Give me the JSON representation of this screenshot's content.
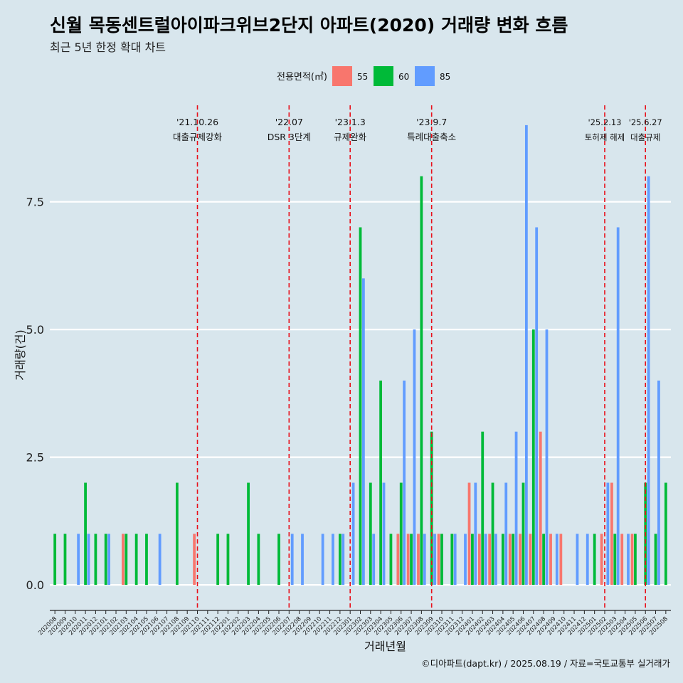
{
  "title": "신월 목동센트럴아이파크위브2단지 아파트(2020) 거래량 변화 흐름",
  "subtitle": "최근 5년 한정 확대 차트",
  "caption": "©디아파트(dapt.kr) / 2025.08.19 / 자료=국토교통부 실거래가",
  "chart_data": {
    "type": "bar",
    "xlabel": "거래년월",
    "ylabel": "거래량(건)",
    "ylim": [
      -0.5,
      9.5
    ],
    "yticks": [
      0.0,
      2.5,
      5.0,
      7.5
    ],
    "ytick_labels": [
      "0.0",
      "2.5",
      "5.0",
      "7.5"
    ],
    "grid": true,
    "legend": {
      "title": "전용면적(㎡)",
      "position": "top"
    },
    "categories": [
      "202008",
      "202009",
      "202010",
      "202011",
      "202012",
      "202101",
      "202102",
      "202103",
      "202104",
      "202105",
      "202106",
      "202107",
      "202108",
      "202109",
      "202110",
      "202111",
      "202112",
      "202201",
      "202202",
      "202203",
      "202204",
      "202205",
      "202206",
      "202207",
      "202208",
      "202209",
      "202210",
      "202211",
      "202212",
      "202301",
      "202302",
      "202303",
      "202304",
      "202305",
      "202306",
      "202307",
      "202308",
      "202309",
      "202310",
      "202311",
      "202312",
      "202401",
      "202402",
      "202403",
      "202404",
      "202405",
      "202406",
      "202407",
      "202408",
      "202409",
      "202410",
      "202411",
      "202412",
      "202501",
      "202502",
      "202503",
      "202504",
      "202505",
      "202506",
      "202507",
      "202508"
    ],
    "series": [
      {
        "name": "55",
        "color": "#f8766d",
        "values": [
          0,
          0,
          0,
          0,
          0,
          0,
          0,
          1,
          0,
          0,
          0,
          0,
          0,
          0,
          1,
          0,
          0,
          0,
          0,
          0,
          0,
          0,
          0,
          0,
          0,
          0,
          0,
          0,
          0,
          0,
          0,
          0,
          0,
          0,
          1,
          1,
          1,
          0,
          1,
          0,
          0,
          2,
          1,
          1,
          0,
          1,
          1,
          1,
          3,
          1,
          1,
          0,
          0,
          0,
          1,
          2,
          1,
          1,
          0,
          0,
          0
        ]
      },
      {
        "name": "60",
        "color": "#00ba38",
        "values": [
          1,
          1,
          0,
          2,
          1,
          1,
          0,
          1,
          1,
          1,
          0,
          0,
          2,
          0,
          0,
          0,
          1,
          1,
          0,
          2,
          1,
          0,
          1,
          0,
          0,
          0,
          0,
          0,
          1,
          0,
          7,
          2,
          4,
          1,
          2,
          1,
          8,
          3,
          1,
          1,
          0,
          1,
          3,
          2,
          1,
          1,
          2,
          5,
          1,
          0,
          0,
          0,
          0,
          1,
          0,
          1,
          0,
          1,
          2,
          1,
          2
        ]
      },
      {
        "name": "85",
        "color": "#619cff",
        "values": [
          0,
          0,
          1,
          1,
          0,
          1,
          0,
          0,
          0,
          0,
          1,
          0,
          0,
          0,
          0,
          0,
          0,
          0,
          0,
          0,
          0,
          0,
          0,
          1,
          1,
          0,
          1,
          1,
          1,
          2,
          6,
          1,
          2,
          0,
          4,
          5,
          1,
          1,
          0,
          1,
          1,
          2,
          1,
          1,
          2,
          3,
          9,
          7,
          5,
          1,
          0,
          1,
          1,
          0,
          2,
          7,
          1,
          0,
          8,
          4,
          0
        ]
      }
    ],
    "events": [
      {
        "at": "202110",
        "date": "'21.10.26",
        "label": "대출규제강화"
      },
      {
        "at": "202207",
        "date": "'22.07",
        "label": "DSR 3단계"
      },
      {
        "at": "202301",
        "date": "'23.1.3",
        "label": "규제완화"
      },
      {
        "at": "202309",
        "date": "'23.9.7",
        "label": "특례대출축소"
      },
      {
        "at": "202502",
        "date": "'25.2.13",
        "label": "토허제 해제"
      },
      {
        "at": "202506",
        "date": "'25.6.27",
        "label": "대출규제"
      }
    ]
  }
}
